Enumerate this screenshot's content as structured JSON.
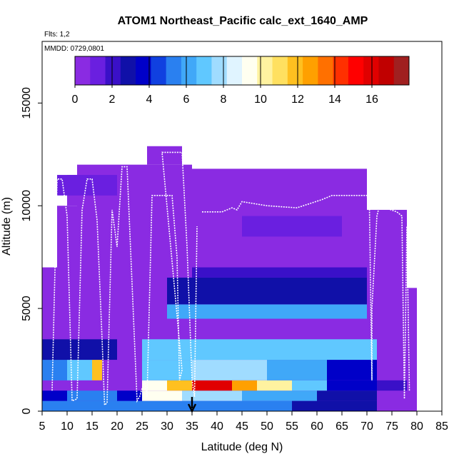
{
  "chart_data": {
    "type": "heatmap",
    "title": "ATOM1 Northeast_Pacific calc_ext_1640_AMP",
    "flights_label": "Flts: 1,2",
    "dates_label": "MMDD: 0729,0801",
    "xlabel": "Latitude (deg N)",
    "ylabel": "Altitude (m)",
    "xlim": [
      5,
      85
    ],
    "ylim": [
      0,
      18000
    ],
    "x_ticks": [
      "5",
      "10",
      "15",
      "20",
      "25",
      "30",
      "35",
      "40",
      "45",
      "50",
      "55",
      "60",
      "65",
      "70",
      "75",
      "80",
      "85"
    ],
    "y_ticks": [
      "0",
      "5000",
      "10000",
      "15000"
    ],
    "colorbar": {
      "range": [
        0,
        18
      ],
      "tick_labels": [
        "0",
        "2",
        "4",
        "6",
        "8",
        "10",
        "12",
        "14",
        "16"
      ],
      "colors": [
        "#8a2be2",
        "#6a1fe0",
        "#3a10c8",
        "#1010a8",
        "#0000c8",
        "#1040e0",
        "#2a80f0",
        "#40a8f8",
        "#60c8ff",
        "#a0dcff",
        "#e0f4ff",
        "#fffff0",
        "#fff2a0",
        "#ffe060",
        "#ffc020",
        "#ffa000",
        "#ff7000",
        "#ff3000",
        "#ff0000",
        "#e00000",
        "#c00000",
        "#a02020"
      ]
    },
    "arrow_latitude": 35,
    "grid": false,
    "heatmap_bins": [
      {
        "lat": [
          5,
          25
        ],
        "alt": [
          0,
          500
        ],
        "value": 5.5
      },
      {
        "lat": [
          5,
          10
        ],
        "alt": [
          500,
          1000
        ],
        "value": 4
      },
      {
        "lat": [
          10,
          20
        ],
        "alt": [
          500,
          1000
        ],
        "value": 5
      },
      {
        "lat": [
          20,
          25
        ],
        "alt": [
          500,
          1000
        ],
        "value": 4
      },
      {
        "lat": [
          25,
          35
        ],
        "alt": [
          0,
          500
        ],
        "value": 5.5
      },
      {
        "lat": [
          35,
          55
        ],
        "alt": [
          0,
          500
        ],
        "value": 5
      },
      {
        "lat": [
          55,
          72
        ],
        "alt": [
          0,
          500
        ],
        "value": 3
      },
      {
        "lat": [
          25,
          33
        ],
        "alt": [
          500,
          1000
        ],
        "value": 9
      },
      {
        "lat": [
          33,
          45
        ],
        "alt": [
          500,
          1000
        ],
        "value": 8
      },
      {
        "lat": [
          45,
          60
        ],
        "alt": [
          500,
          1000
        ],
        "value": 6
      },
      {
        "lat": [
          60,
          72
        ],
        "alt": [
          500,
          1000
        ],
        "value": 3
      },
      {
        "lat": [
          25,
          30
        ],
        "alt": [
          1000,
          1500
        ],
        "value": 9
      },
      {
        "lat": [
          30,
          35
        ],
        "alt": [
          1000,
          1500
        ],
        "value": 12
      },
      {
        "lat": [
          35,
          43
        ],
        "alt": [
          1000,
          1500
        ],
        "value": 16
      },
      {
        "lat": [
          43,
          48
        ],
        "alt": [
          1000,
          1500
        ],
        "value": 13
      },
      {
        "lat": [
          48,
          55
        ],
        "alt": [
          1000,
          1500
        ],
        "value": 10
      },
      {
        "lat": [
          55,
          62
        ],
        "alt": [
          1000,
          1500
        ],
        "value": 7
      },
      {
        "lat": [
          62,
          72
        ],
        "alt": [
          1000,
          1500
        ],
        "value": 4
      },
      {
        "lat": [
          72,
          78
        ],
        "alt": [
          1000,
          1500
        ],
        "value": 2
      },
      {
        "lat": [
          25,
          35
        ],
        "alt": [
          1500,
          2500
        ],
        "value": 7
      },
      {
        "lat": [
          35,
          50
        ],
        "alt": [
          1500,
          2500
        ],
        "value": 8
      },
      {
        "lat": [
          50,
          62
        ],
        "alt": [
          1500,
          2500
        ],
        "value": 6
      },
      {
        "lat": [
          62,
          72
        ],
        "alt": [
          1500,
          2500
        ],
        "value": 4
      },
      {
        "lat": [
          5,
          10
        ],
        "alt": [
          1500,
          2500
        ],
        "value": 5
      },
      {
        "lat": [
          10,
          15
        ],
        "alt": [
          1500,
          2500
        ],
        "value": 7
      },
      {
        "lat": [
          15,
          17
        ],
        "alt": [
          1500,
          2500
        ],
        "value": 12
      },
      {
        "lat": [
          25,
          72
        ],
        "alt": [
          2500,
          3500
        ],
        "value": 7
      },
      {
        "lat": [
          5,
          20
        ],
        "alt": [
          2500,
          3500
        ],
        "value": 3
      },
      {
        "lat": [
          30,
          70
        ],
        "alt": [
          4500,
          5200
        ],
        "value": 6
      },
      {
        "lat": [
          30,
          70
        ],
        "alt": [
          5200,
          6500
        ],
        "value": 2.5
      },
      {
        "lat": [
          35,
          70
        ],
        "alt": [
          6500,
          7000
        ],
        "value": 2
      },
      {
        "lat": [
          8,
          20
        ],
        "alt": [
          10500,
          11500
        ],
        "value": 1.5
      },
      {
        "lat": [
          45,
          65
        ],
        "alt": [
          8500,
          9500
        ],
        "value": 1.5
      }
    ],
    "flight_tracks": [
      [
        [
          7,
          1000
        ],
        [
          8,
          11300
        ],
        [
          9,
          11300
        ],
        [
          10,
          9500
        ],
        [
          11,
          500
        ],
        [
          12,
          600
        ],
        [
          13,
          9800
        ],
        [
          14,
          11300
        ],
        [
          15,
          11300
        ],
        [
          16,
          9300
        ],
        [
          17,
          3500
        ],
        [
          17.5,
          300
        ],
        [
          18,
          400
        ],
        [
          19,
          9800
        ],
        [
          20,
          8000
        ],
        [
          21,
          11900
        ],
        [
          22,
          11900
        ],
        [
          24,
          500
        ],
        [
          24.5,
          700
        ],
        [
          25.5,
          1500
        ],
        [
          26,
          700
        ],
        [
          27,
          10500
        ],
        [
          31,
          10500
        ],
        [
          32,
          7500
        ],
        [
          32.5,
          1500
        ],
        [
          33,
          2000
        ],
        [
          29,
          12600
        ],
        [
          33,
          12600
        ],
        [
          34,
          8000
        ],
        [
          35,
          1500
        ],
        [
          35.5,
          700
        ],
        [
          36,
          9000
        ]
      ],
      [
        [
          37,
          9700
        ],
        [
          41,
          9700
        ],
        [
          43,
          9900
        ],
        [
          44,
          9800
        ],
        [
          45,
          10200
        ],
        [
          50,
          10000
        ],
        [
          56,
          9900
        ],
        [
          61,
          10300
        ],
        [
          63,
          10500
        ],
        [
          64,
          10500
        ],
        [
          70,
          10500
        ],
        [
          70.5,
          10000
        ],
        [
          71,
          1500
        ],
        [
          71,
          5000
        ],
        [
          72,
          9500
        ],
        [
          72.5,
          10000
        ],
        [
          76,
          9700
        ],
        [
          77,
          9500
        ],
        [
          77.5,
          600
        ],
        [
          78,
          9000
        ],
        [
          78.5,
          1000
        ]
      ]
    ]
  }
}
